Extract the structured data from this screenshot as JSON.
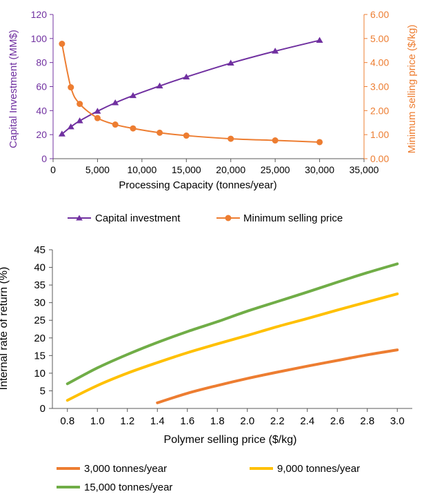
{
  "colors": {
    "capital": "#7030A0",
    "msp": "#ED7D31",
    "irr_3000": "#ED7D31",
    "irr_9000": "#FFC000",
    "irr_15000": "#70AD47",
    "axis": "#595959",
    "tick_text": "#000000"
  },
  "chart_data": [
    {
      "type": "line",
      "xlabel": "Processing Capacity (tonnes/year)",
      "ylabel_left": "Capital Investment (MM$)",
      "ylabel_right": "Minimum selling price ($/kg)",
      "xlim": [
        0,
        35000
      ],
      "ylim_left": [
        0,
        120
      ],
      "ylim_right": [
        0,
        6
      ],
      "x_ticks": [
        "0",
        "5,000",
        "10,000",
        "15,000",
        "20,000",
        "25,000",
        "30,000",
        "35,000"
      ],
      "y_left_ticks": [
        "0",
        "20",
        "40",
        "60",
        "80",
        "100",
        "120"
      ],
      "y_right_ticks": [
        "0.00",
        "1.00",
        "2.00",
        "3.00",
        "4.00",
        "5.00",
        "6.00"
      ],
      "grid": false,
      "legend_position": "bottom",
      "series": [
        {
          "name": "Capital investment",
          "axis": "left",
          "marker": "triangle",
          "x": [
            1000,
            2000,
            3000,
            5000,
            7000,
            9000,
            12000,
            15000,
            20000,
            25000,
            30000
          ],
          "y": [
            20.5,
            26.5,
            31.5,
            39.5,
            46.5,
            52.5,
            60.5,
            68,
            79.5,
            89.5,
            98.5
          ]
        },
        {
          "name": "Minimum selling price",
          "axis": "right",
          "marker": "circle",
          "x": [
            1000,
            2000,
            3000,
            5000,
            7000,
            9000,
            12000,
            15000,
            20000,
            25000,
            30000
          ],
          "y": [
            4.78,
            2.97,
            2.28,
            1.69,
            1.42,
            1.26,
            1.08,
            0.96,
            0.83,
            0.76,
            0.69
          ]
        }
      ]
    },
    {
      "type": "line",
      "xlabel": "Polymer selling price ($/kg)",
      "ylabel": "Internal rate of return (%)",
      "xlim": [
        0.7,
        3.1
      ],
      "ylim": [
        0,
        45
      ],
      "x_ticks": [
        "0.8",
        "1.0",
        "1.2",
        "1.4",
        "1.6",
        "1.8",
        "2.0",
        "2.2",
        "2.4",
        "2.6",
        "2.8",
        "3.0"
      ],
      "y_ticks": [
        "0",
        "5",
        "10",
        "15",
        "20",
        "25",
        "30",
        "35",
        "40",
        "45"
      ],
      "grid": false,
      "legend_position": "bottom",
      "series": [
        {
          "name": "3,000 tonnes/year",
          "x": [
            1.4,
            1.6,
            1.8,
            2.0,
            2.2,
            2.4,
            2.6,
            2.8,
            3.0
          ],
          "y": [
            1.6,
            4.3,
            6.5,
            8.5,
            10.3,
            12.0,
            13.6,
            15.2,
            16.6
          ]
        },
        {
          "name": "9,000 tonnes/year",
          "x": [
            0.8,
            1.0,
            1.2,
            1.4,
            1.6,
            1.8,
            2.0,
            2.2,
            2.4,
            2.6,
            2.8,
            3.0
          ],
          "y": [
            2.3,
            6.5,
            10.0,
            13.0,
            15.8,
            18.3,
            20.7,
            23.2,
            25.5,
            27.9,
            30.2,
            32.5
          ]
        },
        {
          "name": "15,000 tonnes/year",
          "x": [
            0.8,
            1.0,
            1.2,
            1.4,
            1.6,
            1.8,
            2.0,
            2.2,
            2.4,
            2.6,
            2.8,
            3.0
          ],
          "y": [
            7.0,
            11.5,
            15.3,
            18.7,
            21.8,
            24.6,
            27.6,
            30.3,
            33.0,
            35.8,
            38.5,
            41.0
          ]
        }
      ]
    }
  ]
}
